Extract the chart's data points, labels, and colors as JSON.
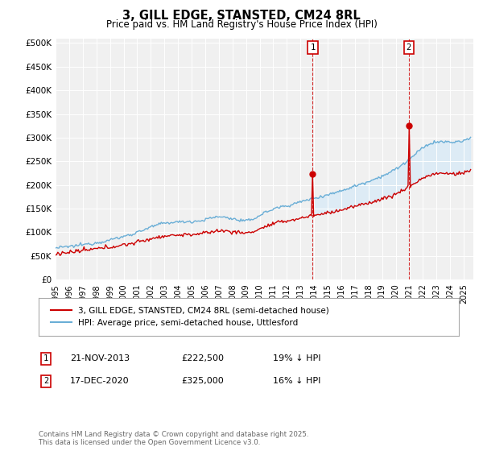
{
  "title": "3, GILL EDGE, STANSTED, CM24 8RL",
  "subtitle": "Price paid vs. HM Land Registry's House Price Index (HPI)",
  "ylabel_ticks": [
    "£0",
    "£50K",
    "£100K",
    "£150K",
    "£200K",
    "£250K",
    "£300K",
    "£350K",
    "£400K",
    "£450K",
    "£500K"
  ],
  "ytick_values": [
    0,
    50000,
    100000,
    150000,
    200000,
    250000,
    300000,
    350000,
    400000,
    450000,
    500000
  ],
  "x_start_year": 1995,
  "x_end_year": 2025,
  "hpi_color": "#6aaed6",
  "price_color": "#cc0000",
  "fill_color": "#d6eaf8",
  "marker1_year": 2013.89,
  "marker1_price": 222500,
  "marker2_year": 2020.96,
  "marker2_price": 325000,
  "legend_house": "3, GILL EDGE, STANSTED, CM24 8RL (semi-detached house)",
  "legend_hpi": "HPI: Average price, semi-detached house, Uttlesford",
  "footnote": "Contains HM Land Registry data © Crown copyright and database right 2025.\nThis data is licensed under the Open Government Licence v3.0.",
  "background_color": "#ffffff",
  "plot_bg_color": "#f0f0f0"
}
